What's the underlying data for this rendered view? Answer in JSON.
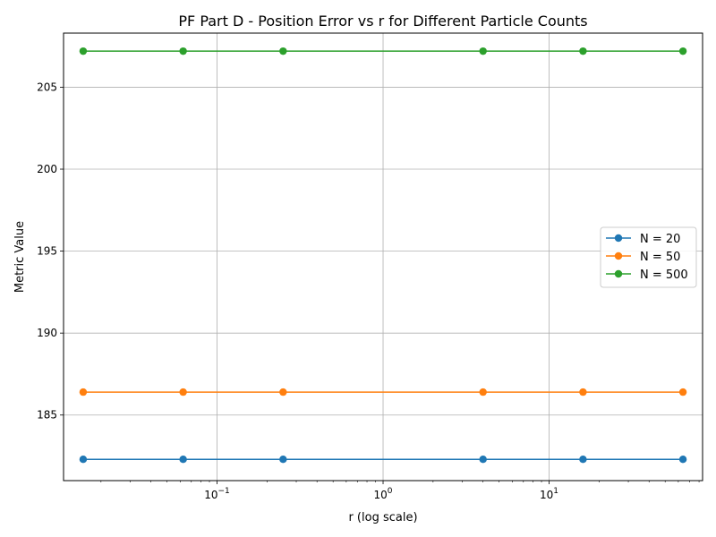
{
  "chart_data": {
    "type": "line",
    "title": "PF Part D - Position Error vs r for Different Particle Counts",
    "xlabel": "r (log scale)",
    "ylabel": "Metric Value",
    "x_scale": "log",
    "x": [
      0.015625,
      0.0625,
      0.25,
      4,
      16,
      64
    ],
    "xlim": [
      0.0119,
      84.0
    ],
    "ylim": [
      181.0,
      208.3
    ],
    "x_ticks": [
      {
        "value": 0.1,
        "base": "10",
        "exp": "−1"
      },
      {
        "value": 1,
        "base": "10",
        "exp": "0"
      },
      {
        "value": 10,
        "base": "10",
        "exp": "1"
      }
    ],
    "y_ticks": [
      185,
      190,
      195,
      200,
      205
    ],
    "grid": true,
    "legend_position": "center-right",
    "series": [
      {
        "name": "N = 20",
        "color": "#1f77b4",
        "values": [
          182.3,
          182.3,
          182.3,
          182.3,
          182.3,
          182.3
        ]
      },
      {
        "name": "N = 50",
        "color": "#ff7f0e",
        "values": [
          186.4,
          186.4,
          186.4,
          186.4,
          186.4,
          186.4
        ]
      },
      {
        "name": "N = 500",
        "color": "#2ca02c",
        "values": [
          207.2,
          207.2,
          207.2,
          207.2,
          207.2,
          207.2
        ]
      }
    ]
  }
}
